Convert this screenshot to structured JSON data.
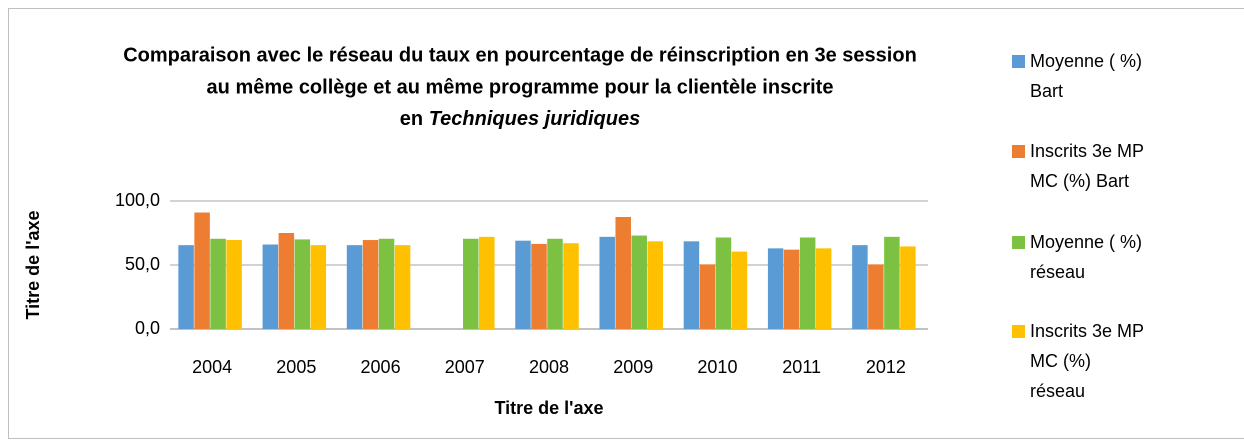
{
  "chart_data": {
    "type": "bar",
    "title": [
      "Comparaison avec le réseau du taux en pourcentage de réinscription en 3e session",
      "au même collège et au même programme pour la clientèle inscrite",
      "en"
    ],
    "title_emphasis": "Techniques juridiques",
    "x_label": "Titre de l'axe",
    "y_label": "Titre de l'axe",
    "categories": [
      "2004",
      "2005",
      "2006",
      "2007",
      "2008",
      "2009",
      "2010",
      "2011",
      "2012"
    ],
    "series": [
      {
        "name": "Moyenne ( %) Bart",
        "color": "#5b9bd5",
        "values": [
          65.5,
          66,
          65.5,
          null,
          69,
          72,
          68.5,
          63,
          65.5
        ]
      },
      {
        "name": "Inscrits 3e MP MC (%) Bart",
        "color": "#ed7d31",
        "values": [
          91,
          75,
          69.5,
          null,
          66.5,
          87.5,
          50.5,
          62,
          50.5
        ]
      },
      {
        "name": "Moyenne ( %) réseau",
        "color": "#7cc142",
        "values": [
          70.5,
          70,
          70.5,
          70.5,
          70.5,
          73,
          71.5,
          71.5,
          72
        ]
      },
      {
        "name": "Inscrits 3e MP MC (%) réseau",
        "color": "#ffc000",
        "values": [
          69.5,
          65.5,
          65.5,
          72,
          67,
          68.5,
          60.5,
          63,
          64.5
        ]
      }
    ],
    "ylim": [
      0,
      100
    ],
    "yticks": [
      {
        "value": 0,
        "label": "0,0"
      },
      {
        "value": 50,
        "label": "50,0"
      },
      {
        "value": 100,
        "label": "100,0"
      }
    ],
    "grid": true,
    "legend": "right"
  }
}
